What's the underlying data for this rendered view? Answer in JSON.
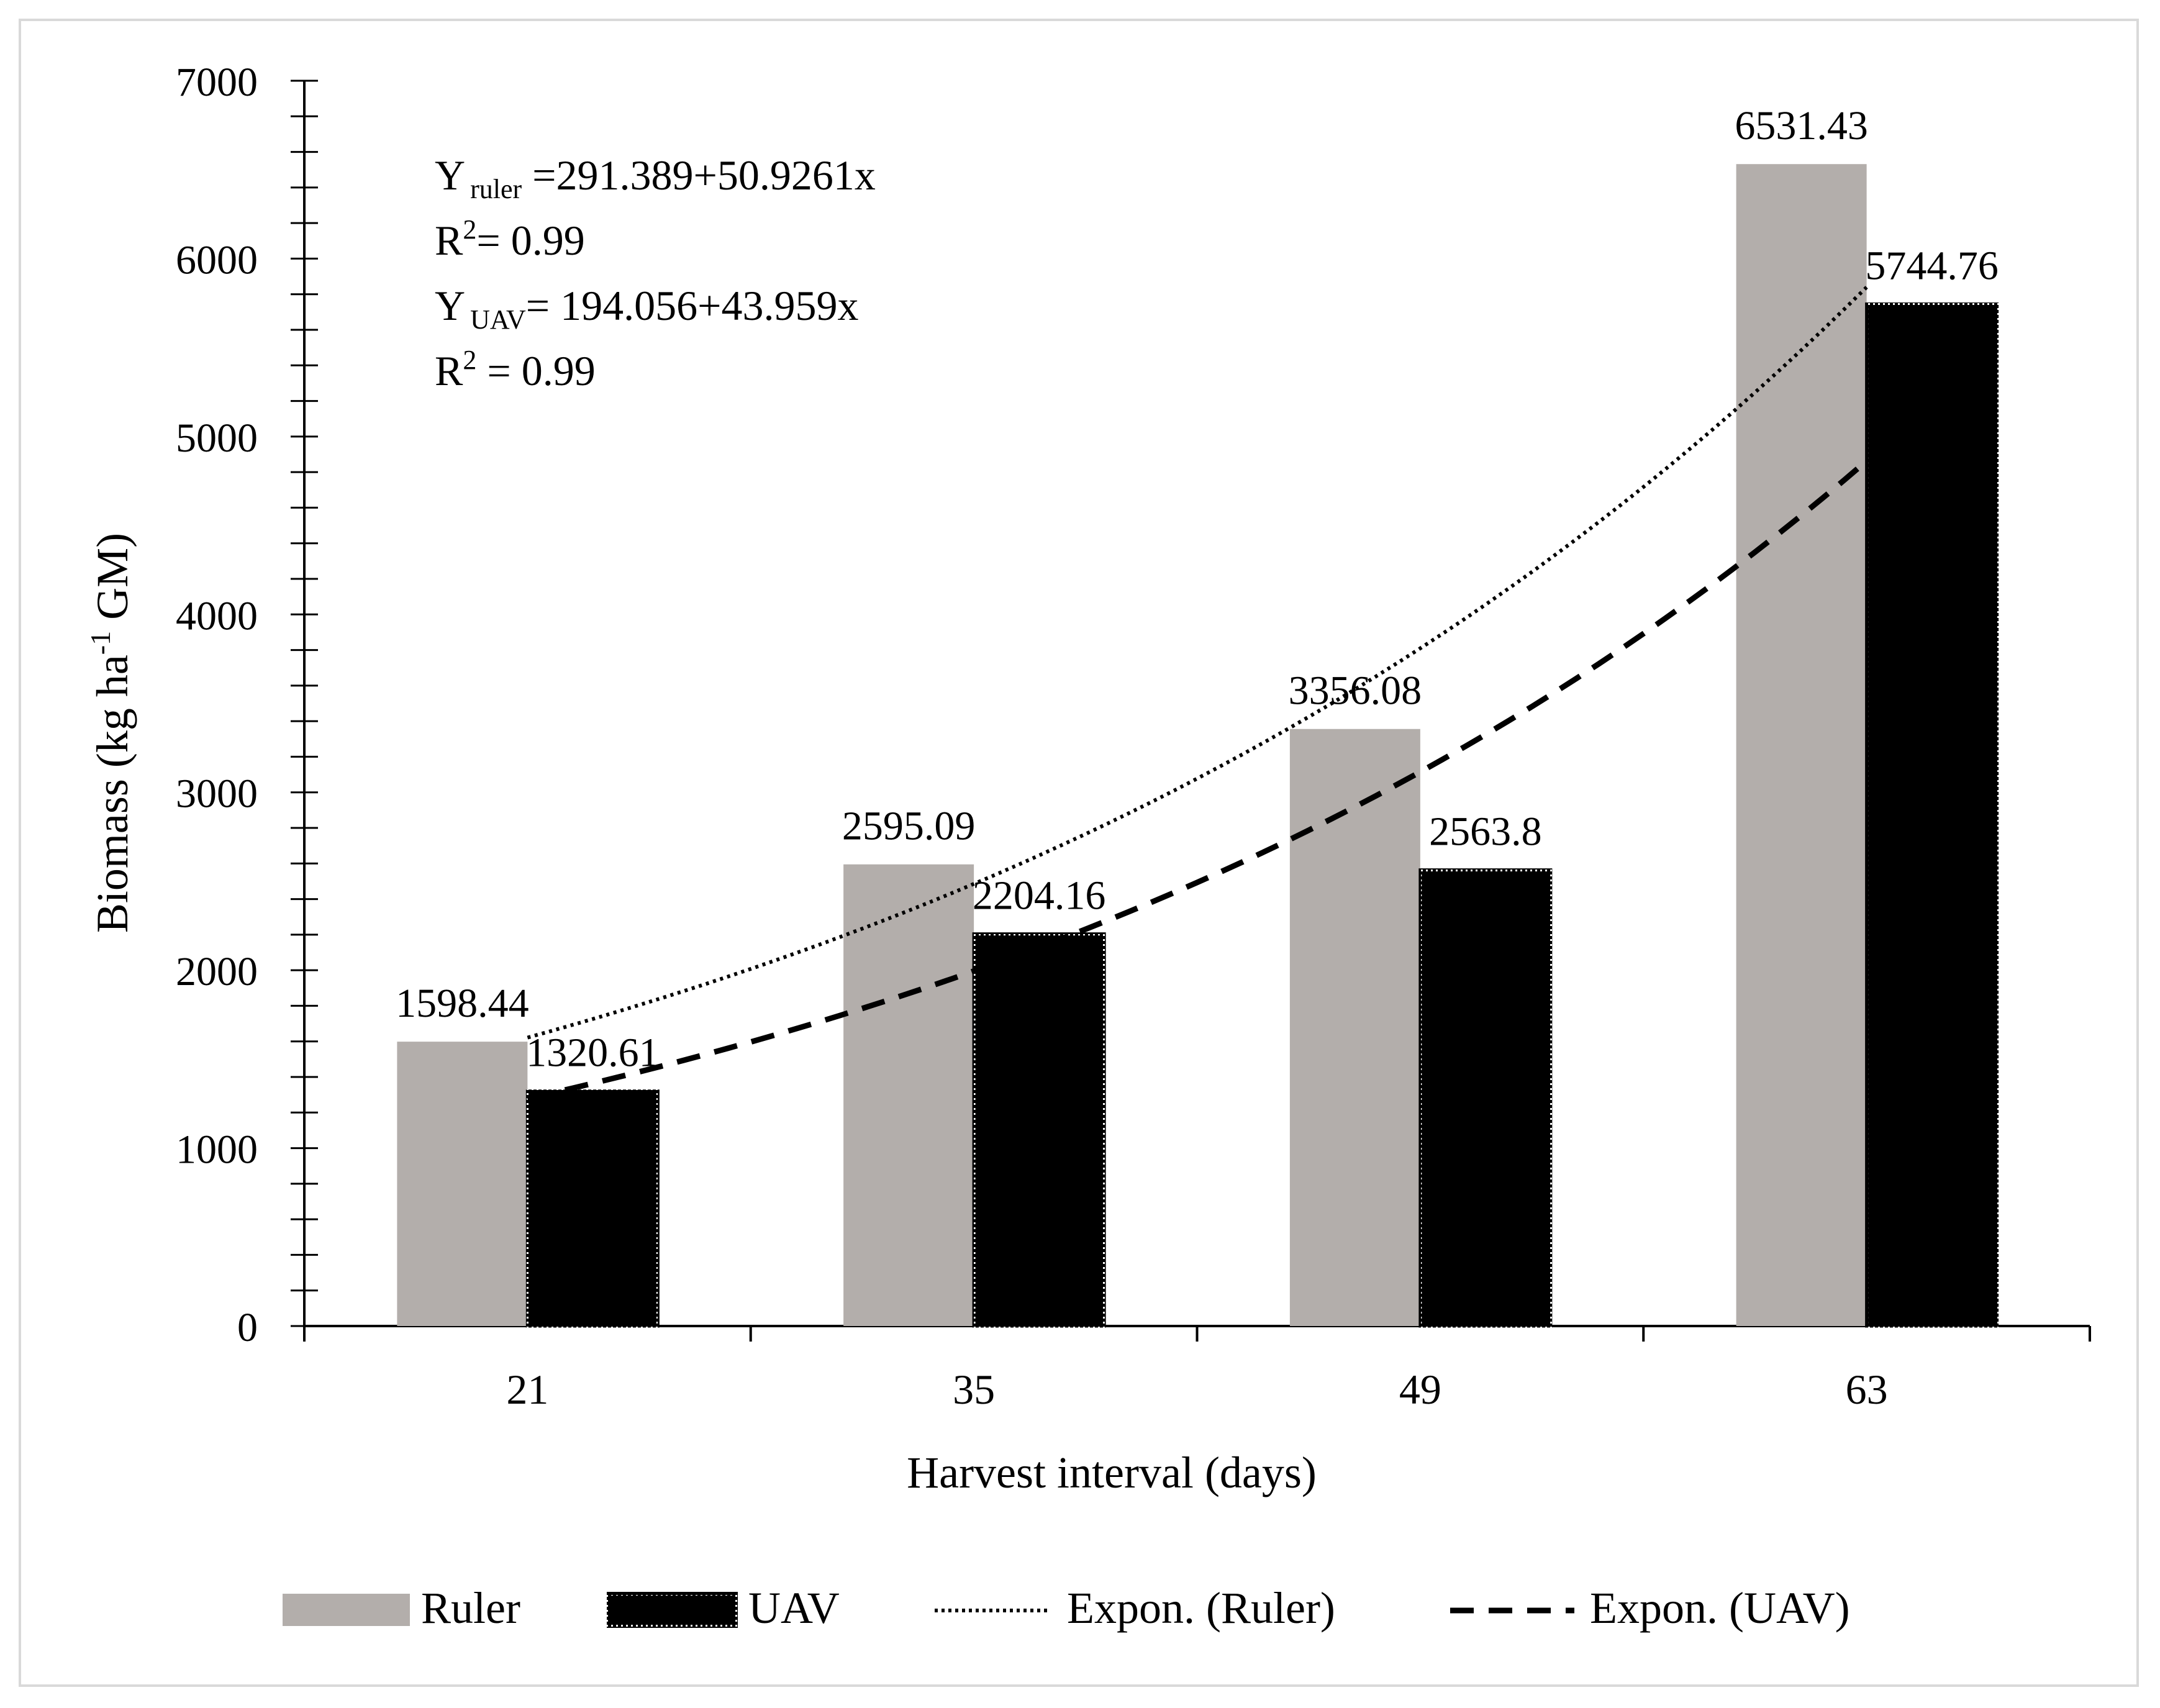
{
  "chart_data": {
    "type": "bar",
    "categories": [
      "21",
      "35",
      "49",
      "63"
    ],
    "series": [
      {
        "name": "Ruler",
        "values": [
          1598.44,
          2595.09,
          3356.08,
          6531.43
        ],
        "color": "#b3aeab"
      },
      {
        "name": "UAV",
        "values": [
          1320.61,
          2204.16,
          2563.8,
          5744.76
        ],
        "color": "#000000"
      }
    ],
    "data_labels": {
      "Ruler": [
        "1598.44",
        "2595.09",
        "3356.08",
        "6531.43"
      ],
      "UAV": [
        "1320.61",
        "2204.16",
        "2563.8",
        "5744.76"
      ]
    },
    "trendlines": [
      {
        "name": "Expon. (Ruler)",
        "type": "exponential",
        "style": "dotted",
        "values": [
          1650,
          2470,
          3660,
          6010
        ]
      },
      {
        "name": "Expon. (UAV)",
        "type": "exponential",
        "style": "dashed",
        "values": [
          1310,
          2000,
          2880,
          5120
        ]
      }
    ],
    "xlabel": "Harvest interval (days)",
    "ylabel_parts": [
      "Biomass (kg ha",
      "-1",
      " GM)"
    ],
    "ylim": [
      0,
      7000
    ],
    "y_ticks": [
      0,
      1000,
      2000,
      3000,
      4000,
      5000,
      6000,
      7000
    ],
    "y_minor_step": 200,
    "legend_position": "bottom",
    "legend": [
      "Ruler",
      "UAV",
      "Expon. (Ruler)",
      "Expon. (UAV)"
    ],
    "annotations": {
      "eq1_y": "Y",
      "eq1_sub": "ruler",
      "eq1_rest": " =291.389+50.9261x",
      "r2_1_r": "R",
      "r2_1_sup": "2",
      "r2_1_rest": "= 0.99",
      "eq2_y": "Y",
      "eq2_sub": "UAV",
      "eq2_rest": "= 194.056+43.959x",
      "r2_2_r": "R",
      "r2_2_sup": "2",
      "r2_2_rest": " = 0.99"
    }
  }
}
